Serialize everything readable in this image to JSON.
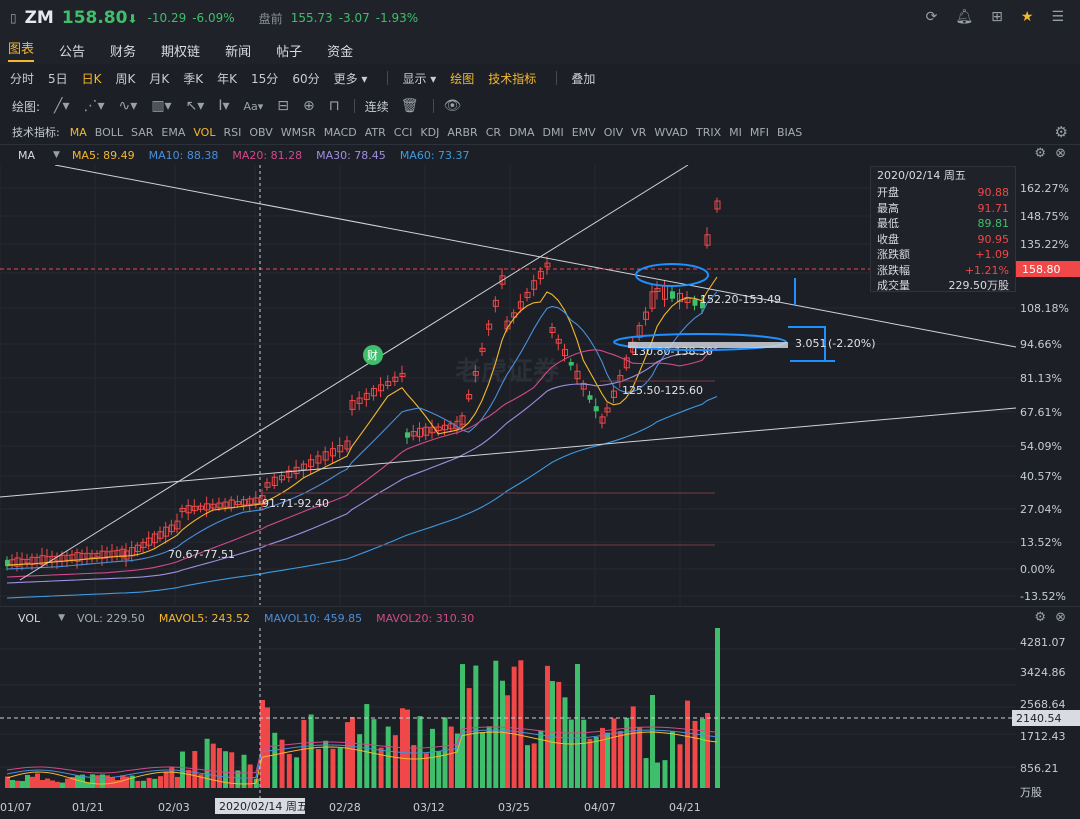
{
  "header": {
    "symbol": "ZM",
    "price": "158.80",
    "price_arrow": "⬇",
    "change": "-10.29",
    "change_pct": "-6.09%",
    "premarket_label": "盘前",
    "premarket_price": "155.73",
    "premarket_change": "-3.07",
    "premarket_pct": "-1.93%",
    "icons": [
      "refresh-icon",
      "bell-icon",
      "grid-icon",
      "star-icon",
      "more-icon"
    ]
  },
  "menu": {
    "items": [
      "图表",
      "公告",
      "财务",
      "期权链",
      "新闻",
      "帖子",
      "资金"
    ],
    "active_index": 0
  },
  "periods": {
    "items": [
      "分时",
      "5日",
      "日K",
      "周K",
      "月K",
      "季K",
      "年K",
      "15分",
      "60分",
      "更多"
    ],
    "active_index": 2,
    "more_label": "更多",
    "display_label": "显示",
    "drawing_label": "绘图",
    "tech_label": "技术指标",
    "overlay_label": "叠加"
  },
  "drawbar": {
    "label": "绘图:",
    "continuous_label": "连续"
  },
  "indicators": {
    "label": "技术指标:",
    "items": [
      "MA",
      "BOLL",
      "SAR",
      "EMA",
      "VOL",
      "RSI",
      "OBV",
      "WMSR",
      "MACD",
      "ATR",
      "CCI",
      "KDJ",
      "ARBR",
      "CR",
      "DMA",
      "DMI",
      "EMV",
      "OIV",
      "VR",
      "WVAD",
      "TRIX",
      "MI",
      "MFI",
      "BIAS"
    ],
    "active": [
      "MA",
      "VOL"
    ]
  },
  "ma_legend": {
    "name": "MA",
    "items": [
      {
        "label": "MA5: 89.49",
        "color": "#f5b82e"
      },
      {
        "label": "MA10: 88.38",
        "color": "#4a8fd9"
      },
      {
        "label": "MA20: 81.28",
        "color": "#d04a8a"
      },
      {
        "label": "MA30: 78.45",
        "color": "#9f8fe0"
      },
      {
        "label": "MA60: 73.37",
        "color": "#3d9be0"
      }
    ]
  },
  "vol_legend": {
    "name": "VOL",
    "items": [
      {
        "label": "VOL: 229.50",
        "color": "#a6abb4"
      },
      {
        "label": "MAVOL5: 243.52",
        "color": "#f5b82e"
      },
      {
        "label": "MAVOL10: 459.85",
        "color": "#4a8fd9"
      },
      {
        "label": "MAVOL20: 310.30",
        "color": "#d04a8a"
      }
    ]
  },
  "price_axis": [
    "162.27%",
    "148.75%",
    "135.22%",
    "121.70%",
    "108.18%",
    "94.66%",
    "81.13%",
    "67.61%",
    "54.09%",
    "40.57%",
    "27.04%",
    "13.52%",
    "0.00%",
    "-13.52%"
  ],
  "current_price_tag": "158.80",
  "vol_axis": [
    "4281.07",
    "3424.86",
    "2568.64",
    "1712.43",
    "856.21"
  ],
  "vol_unit": "万股",
  "current_vol_tag": "2140.54",
  "date_axis": [
    "01/07",
    "01/21",
    "02/03",
    "02/28",
    "03/12",
    "03/25",
    "04/07",
    "04/21"
  ],
  "crosshair_date": "2020/02/14 周五",
  "infobox": {
    "date": "2020/02/14 周五",
    "rows": [
      {
        "k": "开盘",
        "v": "90.88",
        "color": "#f04848"
      },
      {
        "k": "最高",
        "v": "91.71",
        "color": "#f04848"
      },
      {
        "k": "最低",
        "v": "89.81",
        "color": "#3fbf6b"
      },
      {
        "k": "收盘",
        "v": "90.95",
        "color": "#f04848"
      },
      {
        "k": "涨跌额",
        "v": "+1.09",
        "color": "#f04848"
      },
      {
        "k": "涨跌幅",
        "v": "+1.21%",
        "color": "#f04848"
      },
      {
        "k": "成交量",
        "v": "229.50万股",
        "color": "#d8dbe0"
      }
    ]
  },
  "annotations": {
    "range1": "70.67-77.51",
    "range2": "91.71-92.40",
    "range3": "152.20-153.49",
    "range4": "130.80-138.30",
    "range5": "125.50-125.60",
    "change_note": "3.051",
    "change_note_pct": "(-2.20%)",
    "earnings_badge": "财",
    "watermark": "老虎证券"
  },
  "colors": {
    "up": "#f04848",
    "down": "#3fbf6b",
    "accent": "#f5b82e"
  }
}
